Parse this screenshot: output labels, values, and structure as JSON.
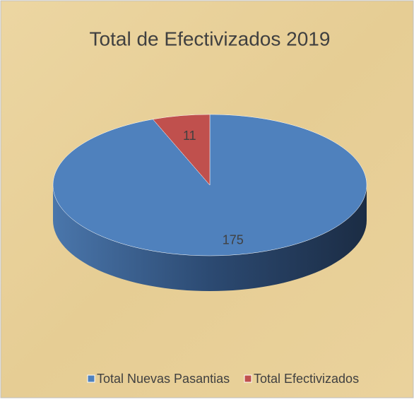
{
  "chart_data": {
    "type": "pie",
    "title": "Total de Efectivizados 2019",
    "categories": [
      "Total Nuevas Pasantias",
      "Total Efectivizados"
    ],
    "values": [
      175,
      11
    ],
    "colors": [
      "#4f81bd",
      "#c0504d"
    ],
    "legend": "bottom"
  }
}
